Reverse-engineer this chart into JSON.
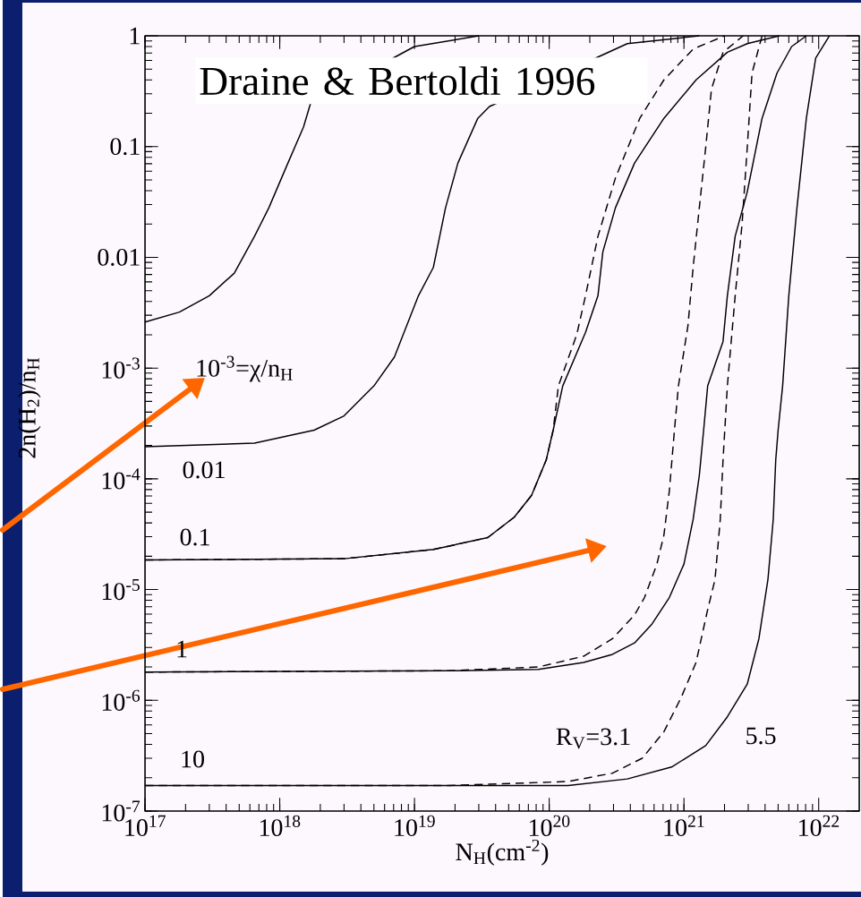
{
  "chart_data": {
    "type": "line",
    "xlabel": "N$_{H}$(cm$^{-2}$)",
    "ylabel": "2n(H$_{2}$)/n$_{H}$",
    "log": "xy",
    "xlim": [
      1e+17,
      2e+22
    ],
    "ylim": [
      1e-07,
      1
    ],
    "xticks": [
      {
        "value": 1e+17,
        "label": "10$^{17}$"
      },
      {
        "value": 1e+18,
        "label": "10$^{18}$"
      },
      {
        "value": 1e+19,
        "label": "10$^{19}$"
      },
      {
        "value": 1e+20,
        "label": "10$^{20}$"
      },
      {
        "value": 1e+21,
        "label": "10$^{21}$"
      },
      {
        "value": 1e+22,
        "label": "10$^{22}$"
      }
    ],
    "yticks": [
      {
        "value": 1e-07,
        "label": "10$^{-7}$"
      },
      {
        "value": 1e-06,
        "label": "10$^{-6}$"
      },
      {
        "value": 1e-05,
        "label": "10$^{-5}$"
      },
      {
        "value": 0.0001,
        "label": "10$^{-4}$"
      },
      {
        "value": 0.001,
        "label": "10$^{-3}$"
      },
      0.01,
      0.1,
      1
    ],
    "series": [
      {
        "color": "#000000",
        "line_style": "solid",
        "x": [
          1e+17,
          1.8e+17,
          3e+17,
          4.6e+17,
          6.5e+17,
          8.3e+17,
          1.15e+18,
          1.5e+18,
          1.7e+18,
          1e+19,
          3e+19
        ],
        "values": [
          0.0026,
          0.0032,
          0.0045,
          0.0072,
          0.0155,
          0.028,
          0.071,
          0.15,
          0.25,
          0.8,
          1
        ]
      },
      {
        "color": "#000000",
        "line_style": "solid",
        "x": [
          1e+17,
          6.5e+17,
          1.8e+18,
          3e+18,
          5e+18,
          7.1e+18,
          1.07e+19,
          1.38e+19,
          1.7e+19,
          2.1e+19,
          2.95e+19,
          3.6e+19,
          3.8e+20,
          1.3e+21
        ],
        "values": [
          0.000195,
          0.00021,
          0.000275,
          0.00037,
          0.00069,
          0.00126,
          0.0045,
          0.0081,
          0.028,
          0.071,
          0.18,
          0.23,
          0.85,
          1
        ]
      },
      {
        "color": "#000000",
        "line_style": "solid",
        "x": [
          1e+17,
          3e+18,
          1.38e+19,
          3.5e+19,
          5.5e+19,
          7.4e+19,
          9.5e+19,
          1.07e+20,
          1.26e+20,
          1.86e+20,
          2.3e+20,
          2.5e+20,
          3.1e+20,
          4.3e+20,
          7.1e+20,
          1.23e+21,
          2.1e+21,
          2.95e+21,
          5.1e+21
        ],
        "values": [
          1.85e-05,
          1.9e-05,
          2.3e-05,
          2.95e-05,
          4.5e-05,
          7.1e-05,
          0.000148,
          0.000275,
          0.00069,
          0.0021,
          0.0045,
          0.0112,
          0.028,
          0.071,
          0.18,
          0.4,
          0.71,
          0.85,
          1
        ]
      },
      {
        "color": "#000000",
        "line_style": "dashed",
        "x": [
          1e+17,
          3e+18,
          1.38e+19,
          3.5e+19,
          5.5e+19,
          7.4e+19,
          9.5e+19,
          1.07e+20,
          1.17e+20,
          1.6e+20,
          1.86e+20,
          2.3e+20,
          3.1e+20,
          4.7e+20,
          7.1e+20,
          1.17e+21,
          2e+21
        ],
        "values": [
          1.85e-05,
          1.9e-05,
          2.3e-05,
          2.95e-05,
          4.5e-05,
          7.1e-05,
          0.000148,
          0.000275,
          0.00069,
          0.002,
          0.0045,
          0.0155,
          0.052,
          0.18,
          0.4,
          0.76,
          1
        ]
      },
      {
        "color": "#000000",
        "line_style": "solid",
        "x": [
          1e+17,
          1.8e+19,
          8.3e+19,
          1.8e+20,
          2.95e+20,
          4.3e+20,
          5.8e+20,
          7.8e+20,
          1e+21,
          1.17e+21,
          1.3e+21,
          1.4e+21,
          1.5e+21,
          1.95e+21,
          2.1e+21,
          2.4e+21,
          2.95e+21,
          3.8e+21,
          4.9e+21,
          6.3e+21,
          8.1e+21
        ],
        "values": [
          1.8e-06,
          1.85e-06,
          1.9e-06,
          2.2e-06,
          2.6e-06,
          3.3e-06,
          4.9e-06,
          8.5e-06,
          1.7e-05,
          4.3e-05,
          0.000107,
          0.000275,
          0.00069,
          0.00174,
          0.0045,
          0.0155,
          0.039,
          0.18,
          0.46,
          0.8,
          1
        ]
      },
      {
        "color": "#000000",
        "line_style": "dashed",
        "x": [
          1e+17,
          1.8e+19,
          8.3e+19,
          1.8e+20,
          2.95e+20,
          4.3e+20,
          5.1e+20,
          6.3e+20,
          7.1e+20,
          7.8e+20,
          8.5e+20,
          9.1e+20,
          1.07e+21,
          1.17e+21,
          1.3e+21,
          1.45e+21,
          1.6e+21,
          1.95e+21,
          2.75e+21
        ],
        "values": [
          1.8e-06,
          1.85e-06,
          2e-06,
          2.5e-06,
          3.6e-06,
          5.9e-06,
          8.5e-06,
          1.7e-05,
          3.1e-05,
          7.9e-05,
          0.000275,
          0.00069,
          0.0024,
          0.0081,
          0.028,
          0.098,
          0.33,
          0.71,
          1
        ]
      },
      {
        "color": "#000000",
        "line_style": "solid",
        "x": [
          1e+17,
          1.8e+19,
          1.38e+20,
          3.8e+20,
          8.1e+20,
          1.45e+21,
          2.1e+21,
          2.95e+21,
          3.6e+21,
          4.2e+21,
          4.6e+21,
          4.8e+21,
          5e+21,
          5.4e+21,
          6e+21,
          6.9e+21,
          8.1e+21,
          9.5e+21,
          1.2e+22
        ],
        "values": [
          1.7e-07,
          1.7e-07,
          1.7e-07,
          1.95e-07,
          2.5e-07,
          3.9e-07,
          7.1e-07,
          1.4e-06,
          3.6e-06,
          1.23e-05,
          4.3e-05,
          0.000148,
          0.000275,
          0.00069,
          0.0045,
          0.028,
          0.18,
          0.63,
          1
        ]
      },
      {
        "color": "#000000",
        "line_style": "dashed",
        "x": [
          1e+17,
          1.8e+19,
          1.38e+20,
          2.95e+20,
          4.9e+20,
          7.1e+20,
          9.5e+20,
          1.23e+21,
          1.5e+21,
          1.7e+21,
          1.86e+21,
          1.95e+21,
          2.1e+21,
          2.4e+21,
          2.7e+21,
          2.95e+21,
          3.2e+21,
          3.8e+21
        ],
        "values": [
          1.7e-07,
          1.7e-07,
          1.85e-07,
          2.2e-07,
          3e-07,
          5.2e-07,
          1.05e-06,
          2.2e-06,
          6.6e-06,
          1.23e-05,
          4.3e-05,
          0.000148,
          0.00069,
          0.0045,
          0.02,
          0.098,
          0.46,
          1
        ]
      }
    ],
    "annotations": [
      "Draine & Bertoldi 1996",
      "10$^{-3}$=χ/n$_{H}$",
      "0.01",
      "0.1",
      "1",
      "10",
      "R$_{V}$=3.1",
      "5.5"
    ]
  }
}
